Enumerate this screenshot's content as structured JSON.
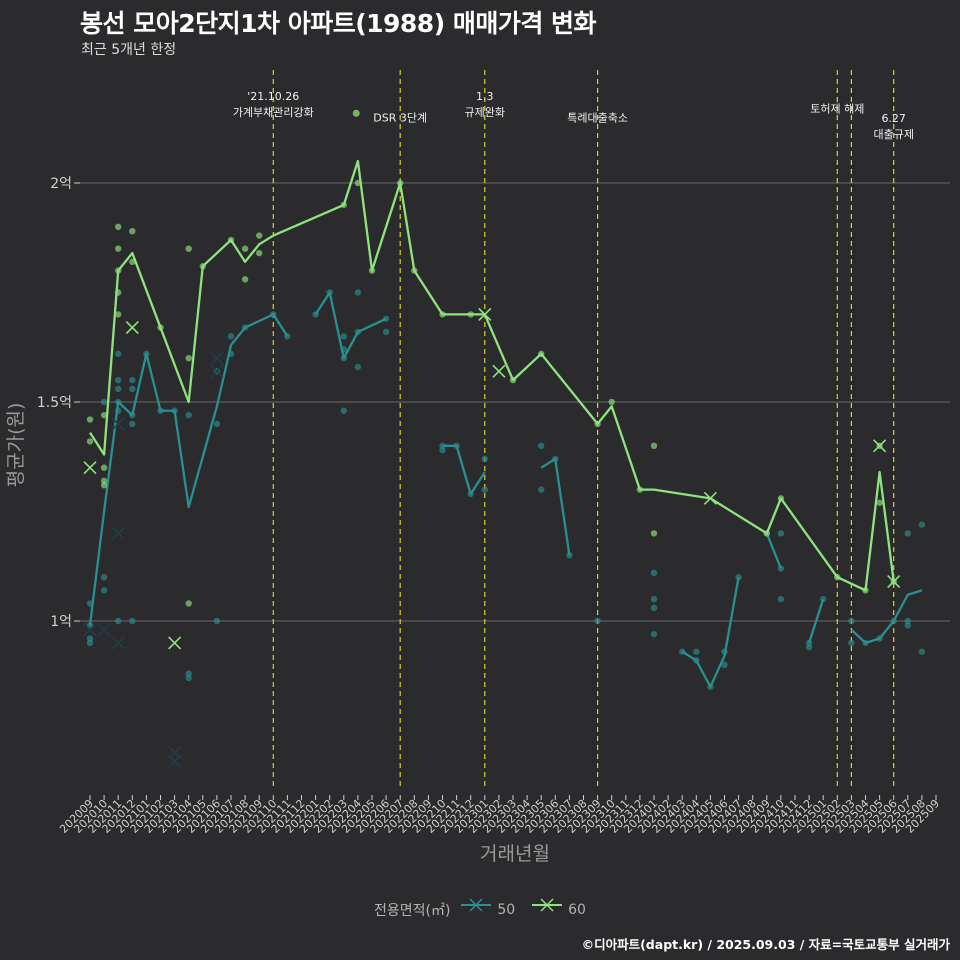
{
  "title": "봉선 모아2단지1차 아파트(1988) 매매가격 변화",
  "subtitle": "최근 5개년 한정",
  "caption": "©디아파트(dapt.kr) / 2025.09.03 / 자료=국토교통부 실거래가",
  "legend": {
    "title": "전용면적(㎡)",
    "items": [
      {
        "label": "50",
        "color": "#2a8f91"
      },
      {
        "label": "60",
        "color": "#8fe37e"
      }
    ]
  },
  "chart_data": {
    "type": "line",
    "xlabel": "거래년월",
    "ylabel": "평균가(원)",
    "ylim": [
      0.6,
      2.2
    ],
    "y_ticks": [
      {
        "value": 1.0,
        "label": "1억"
      },
      {
        "value": 1.5,
        "label": "1.5억"
      },
      {
        "value": 2.0,
        "label": "2억"
      }
    ],
    "categories": [
      "202009",
      "202010",
      "202011",
      "202012",
      "202101",
      "202102",
      "202103",
      "202104",
      "202105",
      "202106",
      "202107",
      "202108",
      "202109",
      "202110",
      "202111",
      "202112",
      "202201",
      "202202",
      "202203",
      "202204",
      "202205",
      "202206",
      "202207",
      "202208",
      "202209",
      "202210",
      "202211",
      "202212",
      "202301",
      "202302",
      "202303",
      "202304",
      "202305",
      "202306",
      "202307",
      "202308",
      "202309",
      "202310",
      "202311",
      "202312",
      "202401",
      "202402",
      "202403",
      "202404",
      "202405",
      "202406",
      "202407",
      "202408",
      "202409",
      "202410",
      "202411",
      "202412",
      "202501",
      "202502",
      "202503",
      "202504",
      "202505",
      "202506",
      "202507",
      "202508",
      "202509"
    ],
    "events": [
      {
        "x": "202110",
        "label": "'21.10.26\n가계부채관리강화",
        "label_y": 2.18
      },
      {
        "x": "202207",
        "label": "DSR 3단계",
        "label_y": 2.15,
        "marker": true
      },
      {
        "x": "202301",
        "label": "1.3\n규제완화",
        "label_y": 2.18
      },
      {
        "x": "202309",
        "label": "특례대출축소",
        "label_y": 2.15
      },
      {
        "x": "202502",
        "label": "토허제 해제",
        "label_y": 2.17
      },
      {
        "x": "202503",
        "label": "",
        "label_y": 2.17
      },
      {
        "x": "202506",
        "label": "6.27\n대출규제",
        "label_y": 2.13
      }
    ],
    "series": [
      {
        "name": "50",
        "color": "#2a8f91",
        "line": [
          [
            "202009",
            0.99
          ],
          [
            "202010",
            1.25
          ],
          [
            "202011",
            1.5
          ],
          [
            "202012",
            1.47
          ],
          [
            "202101",
            1.61
          ],
          [
            "202102",
            1.48
          ],
          [
            "202103",
            1.48
          ],
          [
            "202104",
            1.26
          ],
          [
            "202106",
            1.49
          ],
          [
            "202107",
            1.63
          ],
          [
            "202108",
            1.67
          ],
          [
            "202110",
            1.7
          ],
          [
            "202111",
            1.65
          ],
          null,
          [
            "202201",
            1.7
          ],
          [
            "202202",
            1.75
          ],
          [
            "202203",
            1.6
          ],
          [
            "202204",
            1.66
          ],
          [
            "202206",
            1.69
          ],
          null,
          [
            "202210",
            1.4
          ],
          [
            "202211",
            1.4
          ],
          [
            "202212",
            1.29
          ],
          [
            "202301",
            1.34
          ],
          null,
          [
            "202305",
            1.35
          ],
          [
            "202306",
            1.37
          ],
          [
            "202307",
            1.15
          ],
          null,
          [
            "202403",
            0.93
          ],
          [
            "202404",
            0.91
          ],
          [
            "202405",
            0.85
          ],
          [
            "202406",
            0.92
          ],
          [
            "202407",
            1.1
          ],
          null,
          [
            "202409",
            1.2
          ],
          [
            "202410",
            1.12
          ],
          null,
          [
            "202412",
            0.95
          ],
          [
            "202501",
            1.05
          ],
          null,
          [
            "202503",
            0.98
          ],
          [
            "202504",
            0.95
          ],
          [
            "202505",
            0.96
          ],
          [
            "202506",
            1.0
          ],
          [
            "202507",
            1.06
          ],
          [
            "202508",
            1.07
          ]
        ],
        "points": [
          [
            "202009",
            1.04
          ],
          [
            "202009",
            0.99
          ],
          [
            "202009",
            0.96
          ],
          [
            "202009",
            0.95
          ],
          [
            "202010",
            1.5
          ],
          [
            "202010",
            1.1
          ],
          [
            "202010",
            1.07
          ],
          [
            "202011",
            1.61
          ],
          [
            "202011",
            1.55
          ],
          [
            "202011",
            1.53
          ],
          [
            "202011",
            1.5
          ],
          [
            "202011",
            1.48
          ],
          [
            "202011",
            1.0
          ],
          [
            "202012",
            1.55
          ],
          [
            "202012",
            1.53
          ],
          [
            "202012",
            1.47
          ],
          [
            "202012",
            1.45
          ],
          [
            "202012",
            1.0
          ],
          [
            "202101",
            1.61
          ],
          [
            "202102",
            1.48
          ],
          [
            "202103",
            1.48
          ],
          [
            "202104",
            1.47
          ],
          [
            "202104",
            0.88
          ],
          [
            "202104",
            0.87
          ],
          [
            "202106",
            1.57
          ],
          [
            "202106",
            1.45
          ],
          [
            "202106",
            1.0
          ],
          [
            "202107",
            1.65
          ],
          [
            "202107",
            1.61
          ],
          [
            "202108",
            1.67
          ],
          [
            "202110",
            1.7
          ],
          [
            "202111",
            1.65
          ],
          [
            "202201",
            1.7
          ],
          [
            "202202",
            1.75
          ],
          [
            "202203",
            1.65
          ],
          [
            "202203",
            1.62
          ],
          [
            "202203",
            1.6
          ],
          [
            "202203",
            1.48
          ],
          [
            "202204",
            1.75
          ],
          [
            "202204",
            1.66
          ],
          [
            "202204",
            1.58
          ],
          [
            "202206",
            1.69
          ],
          [
            "202206",
            1.66
          ],
          [
            "202210",
            1.4
          ],
          [
            "202210",
            1.39
          ],
          [
            "202211",
            1.4
          ],
          [
            "202212",
            1.29
          ],
          [
            "202301",
            1.37
          ],
          [
            "202301",
            1.3
          ],
          [
            "202305",
            1.4
          ],
          [
            "202305",
            1.3
          ],
          [
            "202306",
            1.37
          ],
          [
            "202307",
            1.15
          ],
          [
            "202309",
            1.0
          ],
          [
            "202401",
            1.11
          ],
          [
            "202401",
            1.05
          ],
          [
            "202401",
            1.03
          ],
          [
            "202401",
            0.97
          ],
          [
            "202403",
            0.93
          ],
          [
            "202404",
            0.91
          ],
          [
            "202404",
            0.93
          ],
          [
            "202405",
            0.85
          ],
          [
            "202406",
            0.9
          ],
          [
            "202406",
            0.93
          ],
          [
            "202407",
            1.1
          ],
          [
            "202409",
            1.2
          ],
          [
            "202410",
            1.2
          ],
          [
            "202410",
            1.12
          ],
          [
            "202410",
            1.05
          ],
          [
            "202412",
            0.95
          ],
          [
            "202412",
            0.94
          ],
          [
            "202501",
            1.05
          ],
          [
            "202503",
            1.0
          ],
          [
            "202503",
            0.95
          ],
          [
            "202504",
            0.95
          ],
          [
            "202505",
            0.96
          ],
          [
            "202506",
            1.0
          ],
          [
            "202507",
            1.2
          ],
          [
            "202507",
            1.0
          ],
          [
            "202507",
            0.99
          ],
          [
            "202508",
            1.22
          ],
          [
            "202508",
            0.93
          ]
        ],
        "crosses": [
          [
            "202009",
            0.98
          ],
          [
            "202010",
            0.98
          ],
          [
            "202011",
            1.2
          ],
          [
            "202011",
            0.95
          ],
          [
            "202011",
            1.45
          ],
          [
            "202106",
            1.6
          ],
          [
            "202106",
            1.57
          ],
          [
            "202103",
            0.68
          ],
          [
            "202103",
            0.7
          ]
        ]
      },
      {
        "name": "60",
        "color": "#8fe37e",
        "line": [
          [
            "202009",
            1.43
          ],
          [
            "202010",
            1.38
          ],
          [
            "202011",
            1.8
          ],
          [
            "202012",
            1.84
          ],
          [
            "202102",
            1.67
          ],
          [
            "202104",
            1.5
          ],
          [
            "202105",
            1.81
          ],
          [
            "202107",
            1.87
          ],
          [
            "202108",
            1.82
          ],
          [
            "202109",
            1.86
          ],
          [
            "202110",
            1.88
          ],
          [
            "202203",
            1.95
          ],
          [
            "202204",
            2.05
          ],
          [
            "202205",
            1.8
          ],
          [
            "202207",
            2.0
          ],
          [
            "202208",
            1.8
          ],
          [
            "202210",
            1.7
          ],
          [
            "202212",
            1.7
          ],
          [
            "202301",
            1.7
          ],
          [
            "202303",
            1.55
          ],
          [
            "202305",
            1.61
          ],
          [
            "202309",
            1.45
          ],
          [
            "202310",
            1.49
          ],
          [
            "202312",
            1.3
          ],
          [
            "202401",
            1.3
          ],
          [
            "202405",
            1.28
          ],
          [
            "202409",
            1.2
          ],
          [
            "202410",
            1.28
          ],
          [
            "202502",
            1.1
          ],
          [
            "202504",
            1.07
          ],
          [
            "202505",
            1.34
          ],
          [
            "202506",
            1.09
          ]
        ],
        "points": [
          [
            "202009",
            1.46
          ],
          [
            "202009",
            1.41
          ],
          [
            "202010",
            1.35
          ],
          [
            "202010",
            1.32
          ],
          [
            "202010",
            1.31
          ],
          [
            "202010",
            1.47
          ],
          [
            "202011",
            1.9
          ],
          [
            "202011",
            1.85
          ],
          [
            "202011",
            1.8
          ],
          [
            "202011",
            1.75
          ],
          [
            "202011",
            1.7
          ],
          [
            "202012",
            1.89
          ],
          [
            "202012",
            1.82
          ],
          [
            "202102",
            1.67
          ],
          [
            "202104",
            1.85
          ],
          [
            "202104",
            1.6
          ],
          [
            "202104",
            1.04
          ],
          [
            "202105",
            1.81
          ],
          [
            "202107",
            1.87
          ],
          [
            "202108",
            1.85
          ],
          [
            "202108",
            1.78
          ],
          [
            "202109",
            1.88
          ],
          [
            "202109",
            1.84
          ],
          [
            "202203",
            1.95
          ],
          [
            "202204",
            2.0
          ],
          [
            "202205",
            1.8
          ],
          [
            "202207",
            2.0
          ],
          [
            "202208",
            1.8
          ],
          [
            "202210",
            1.7
          ],
          [
            "202212",
            1.7
          ],
          [
            "202303",
            1.55
          ],
          [
            "202305",
            1.61
          ],
          [
            "202309",
            1.45
          ],
          [
            "202310",
            1.5
          ],
          [
            "202312",
            1.3
          ],
          [
            "202401",
            1.4
          ],
          [
            "202401",
            1.2
          ],
          [
            "202409",
            1.2
          ],
          [
            "202410",
            1.28
          ],
          [
            "202502",
            1.1
          ],
          [
            "202504",
            1.07
          ],
          [
            "202505",
            1.4
          ],
          [
            "202505",
            1.27
          ],
          [
            "202506",
            1.09
          ]
        ],
        "crosses": [
          [
            "202009",
            1.35
          ],
          [
            "202012",
            1.67
          ],
          [
            "202103",
            0.95
          ],
          [
            "202301",
            1.7
          ],
          [
            "202302",
            1.57
          ],
          [
            "202405",
            1.28
          ],
          [
            "202505",
            1.4
          ],
          [
            "202506",
            1.09
          ]
        ]
      }
    ]
  }
}
